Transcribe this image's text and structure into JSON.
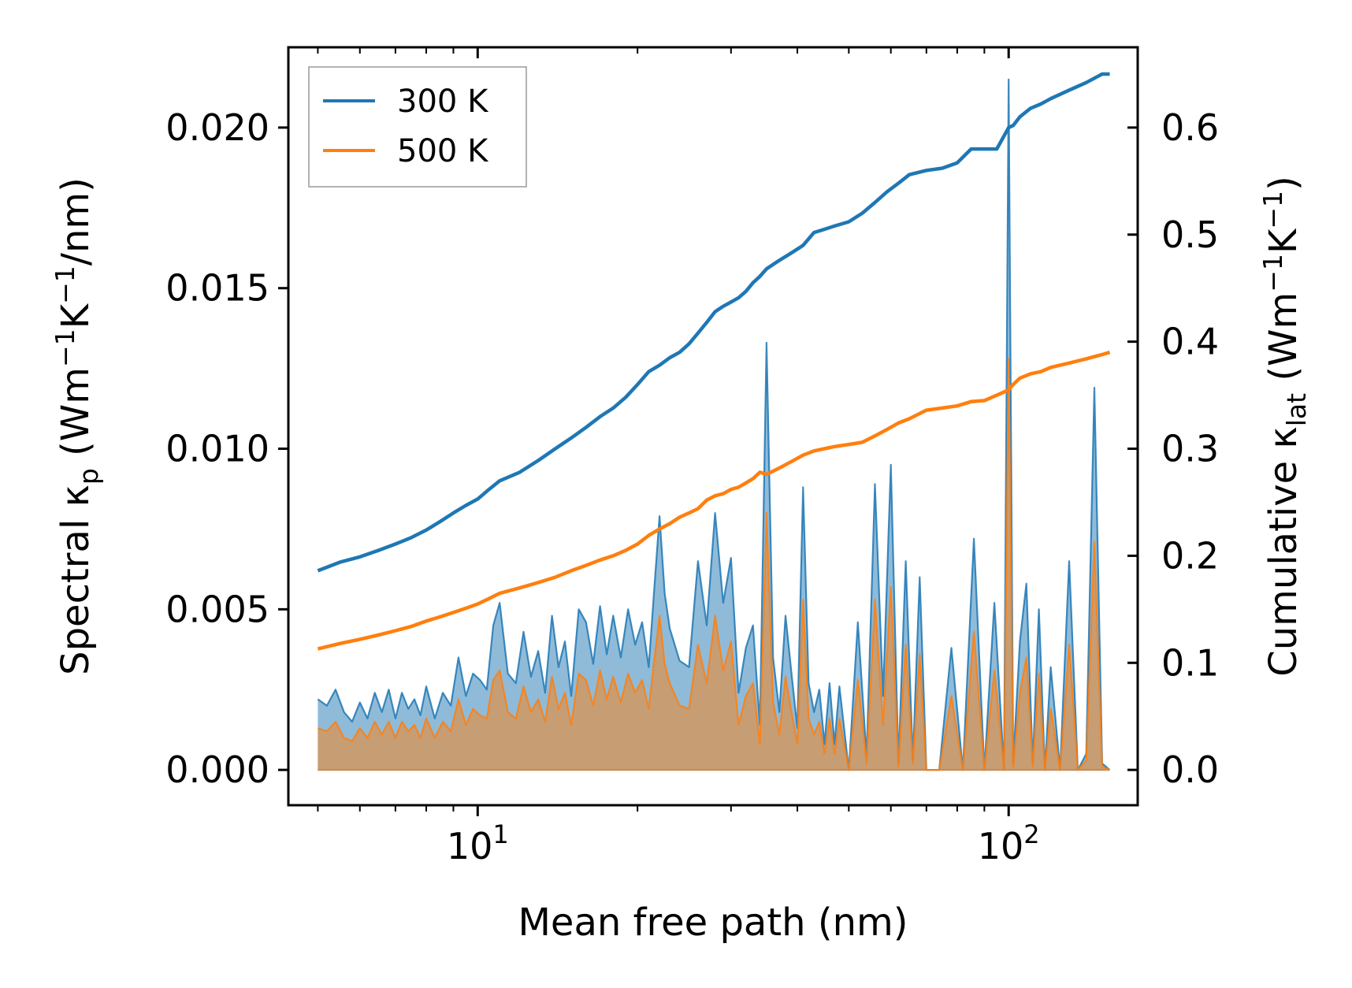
{
  "chart_data": {
    "type": "line",
    "xscale": "log",
    "xlabel": "Mean free path (nm)",
    "xlim": [
      4.4,
      175
    ],
    "x_major_ticks": [
      {
        "value": 10,
        "base": "10",
        "exp": "1"
      },
      {
        "value": 100,
        "base": "10",
        "exp": "2"
      }
    ],
    "y_left": {
      "label": {
        "prefix": "Spectral κ",
        "sub": "p",
        "units_prefix": " (Wm",
        "exp1": "−1",
        "units_mid": "K",
        "exp2": "−1",
        "units_suffix": "/nm)"
      },
      "ylim": [
        -0.0011,
        0.0225
      ],
      "ticks": [
        {
          "value": 0.0,
          "label": "0.000"
        },
        {
          "value": 0.005,
          "label": "0.005"
        },
        {
          "value": 0.01,
          "label": "0.010"
        },
        {
          "value": 0.015,
          "label": "0.015"
        },
        {
          "value": 0.02,
          "label": "0.020"
        }
      ]
    },
    "y_right": {
      "label": {
        "prefix": "Cumulative κ",
        "sub": "lat",
        "units_prefix": " (Wm",
        "exp1": "−1",
        "units_mid": "K",
        "exp2": "−1",
        "units_suffix": ")"
      },
      "ylim": [
        -0.033,
        0.675
      ],
      "ticks": [
        {
          "value": 0.0,
          "label": "0.0"
        },
        {
          "value": 0.1,
          "label": "0.1"
        },
        {
          "value": 0.2,
          "label": "0.2"
        },
        {
          "value": 0.3,
          "label": "0.3"
        },
        {
          "value": 0.4,
          "label": "0.4"
        },
        {
          "value": 0.5,
          "label": "0.5"
        },
        {
          "value": 0.6,
          "label": "0.6"
        }
      ]
    },
    "series": [
      {
        "name": "300 K",
        "color": "#1f77b4",
        "fill_color": "#1f77b4",
        "cumulative": {
          "x": [
            5,
            5.5,
            6,
            6.5,
            7,
            7.5,
            8,
            8.5,
            9,
            9.5,
            10,
            10.5,
            11,
            12,
            13,
            14,
            15,
            16,
            17,
            18,
            19,
            20,
            21,
            22,
            23,
            24,
            25,
            26,
            27,
            28,
            29,
            30,
            31,
            32,
            33,
            34,
            35,
            37,
            39,
            41,
            43,
            45,
            47,
            50,
            53,
            56,
            59,
            62,
            65,
            70,
            75,
            80,
            85,
            90,
            95,
            100,
            102,
            105,
            110,
            115,
            120,
            130,
            140,
            150,
            155
          ],
          "y": [
            0.186,
            0.194,
            0.199,
            0.205,
            0.211,
            0.217,
            0.224,
            0.232,
            0.24,
            0.247,
            0.253,
            0.262,
            0.27,
            0.278,
            0.289,
            0.3,
            0.31,
            0.32,
            0.33,
            0.338,
            0.348,
            0.36,
            0.372,
            0.378,
            0.385,
            0.39,
            0.398,
            0.408,
            0.418,
            0.428,
            0.433,
            0.437,
            0.441,
            0.447,
            0.455,
            0.461,
            0.468,
            0.476,
            0.483,
            0.49,
            0.502,
            0.505,
            0.508,
            0.512,
            0.52,
            0.53,
            0.54,
            0.548,
            0.556,
            0.56,
            0.562,
            0.567,
            0.58,
            0.58,
            0.58,
            0.6,
            0.602,
            0.61,
            0.618,
            0.622,
            0.627,
            0.635,
            0.642,
            0.65,
            0.65
          ]
        },
        "spectral": {
          "x": [
            5,
            5.2,
            5.4,
            5.6,
            5.8,
            6.0,
            6.2,
            6.4,
            6.6,
            6.8,
            7.0,
            7.2,
            7.4,
            7.6,
            7.8,
            8.0,
            8.3,
            8.6,
            8.9,
            9.2,
            9.5,
            9.8,
            10.1,
            10.4,
            10.7,
            11.0,
            11.4,
            11.8,
            12.2,
            12.6,
            13.0,
            13.4,
            13.8,
            14.2,
            14.6,
            15.0,
            15.5,
            16.0,
            16.5,
            17.0,
            17.5,
            18.0,
            18.6,
            19.2,
            19.8,
            20.4,
            21.0,
            21.5,
            22.0,
            22.5,
            23.0,
            24.0,
            25.0,
            26.0,
            27.0,
            28.0,
            29.0,
            30.0,
            31.0,
            32.0,
            33.0,
            34.0,
            35.0,
            36.0,
            37.0,
            38.0,
            39.0,
            40.0,
            41.0,
            42.0,
            43.0,
            44.0,
            45.0,
            46.0,
            47.0,
            48.0,
            50.0,
            52.0,
            54.0,
            56.0,
            58.0,
            60.0,
            62.0,
            64.0,
            66.0,
            68.0,
            70.0,
            74.0,
            78.0,
            82.0,
            86.0,
            90.0,
            94.0,
            98.0,
            100.0,
            102.0,
            105.0,
            108.0,
            111.0,
            114.0,
            117.0,
            120.0,
            125.0,
            130.0,
            135.0,
            140.0,
            145.0,
            150.0,
            155.0
          ],
          "y": [
            0.0022,
            0.002,
            0.0025,
            0.0018,
            0.0015,
            0.0021,
            0.0016,
            0.0024,
            0.0018,
            0.0025,
            0.0016,
            0.0024,
            0.0019,
            0.0022,
            0.0017,
            0.0026,
            0.0016,
            0.0024,
            0.002,
            0.0035,
            0.0023,
            0.003,
            0.0028,
            0.0025,
            0.0045,
            0.0052,
            0.003,
            0.0027,
            0.0043,
            0.0029,
            0.0037,
            0.0024,
            0.0048,
            0.0032,
            0.004,
            0.0023,
            0.005,
            0.0046,
            0.0033,
            0.0051,
            0.0036,
            0.0048,
            0.0035,
            0.005,
            0.0039,
            0.0046,
            0.0032,
            0.0056,
            0.0079,
            0.0055,
            0.0044,
            0.0034,
            0.0032,
            0.0065,
            0.0045,
            0.008,
            0.0052,
            0.0066,
            0.0024,
            0.0038,
            0.0045,
            0.0014,
            0.0133,
            0.0035,
            0.0018,
            0.0048,
            0.003,
            0.0013,
            0.0088,
            0.0027,
            0.0018,
            0.0025,
            0.0008,
            0.0027,
            0.0008,
            0.0026,
            0.0,
            0.0046,
            0.0004,
            0.0089,
            0.0023,
            0.0095,
            0.0002,
            0.0065,
            0.0003,
            0.006,
            0.0,
            0.0,
            0.0038,
            0.0,
            0.0072,
            0.0,
            0.0052,
            0.0,
            0.0215,
            0.0002,
            0.004,
            0.0058,
            0.0002,
            0.005,
            0.0,
            0.0032,
            0.0,
            0.0065,
            0.0,
            0.0005,
            0.0119,
            0.0002,
            0.0
          ]
        }
      },
      {
        "name": "500 K",
        "color": "#ff7f0e",
        "fill_color": "#ff7f0e",
        "cumulative": {
          "x": [
            5,
            5.5,
            6,
            6.5,
            7,
            7.5,
            8,
            8.5,
            9,
            9.5,
            10,
            10.5,
            11,
            12,
            13,
            14,
            15,
            16,
            17,
            18,
            19,
            20,
            21,
            22,
            23,
            24,
            25,
            26,
            27,
            28,
            29,
            30,
            31,
            32,
            33,
            34,
            35,
            37,
            39,
            41,
            43,
            45,
            47,
            50,
            53,
            56,
            59,
            62,
            65,
            70,
            75,
            80,
            85,
            90,
            95,
            100,
            102,
            105,
            110,
            115,
            120,
            130,
            140,
            150,
            155
          ],
          "y": [
            0.113,
            0.118,
            0.122,
            0.126,
            0.13,
            0.134,
            0.139,
            0.143,
            0.147,
            0.151,
            0.155,
            0.16,
            0.165,
            0.17,
            0.175,
            0.18,
            0.186,
            0.191,
            0.196,
            0.2,
            0.205,
            0.211,
            0.219,
            0.225,
            0.23,
            0.236,
            0.24,
            0.244,
            0.252,
            0.256,
            0.258,
            0.262,
            0.264,
            0.268,
            0.272,
            0.278,
            0.276,
            0.282,
            0.288,
            0.294,
            0.298,
            0.3,
            0.302,
            0.304,
            0.306,
            0.312,
            0.318,
            0.324,
            0.328,
            0.336,
            0.338,
            0.34,
            0.344,
            0.345,
            0.35,
            0.355,
            0.36,
            0.366,
            0.37,
            0.372,
            0.376,
            0.38,
            0.384,
            0.388,
            0.39
          ]
        },
        "spectral": {
          "x": [
            5,
            5.2,
            5.4,
            5.6,
            5.8,
            6.0,
            6.2,
            6.4,
            6.6,
            6.8,
            7.0,
            7.2,
            7.4,
            7.6,
            7.8,
            8.0,
            8.3,
            8.6,
            8.9,
            9.2,
            9.5,
            9.8,
            10.1,
            10.4,
            10.7,
            11.0,
            11.4,
            11.8,
            12.2,
            12.6,
            13.0,
            13.4,
            13.8,
            14.2,
            14.6,
            15.0,
            15.5,
            16.0,
            16.5,
            17.0,
            17.5,
            18.0,
            18.6,
            19.2,
            19.8,
            20.4,
            21.0,
            21.5,
            22.0,
            22.5,
            23.0,
            24.0,
            25.0,
            26.0,
            27.0,
            28.0,
            29.0,
            30.0,
            31.0,
            32.0,
            33.0,
            34.0,
            35.0,
            36.0,
            37.0,
            38.0,
            39.0,
            40.0,
            41.0,
            42.0,
            43.0,
            44.0,
            45.0,
            46.0,
            47.0,
            48.0,
            50.0,
            52.0,
            54.0,
            56.0,
            58.0,
            60.0,
            62.0,
            64.0,
            66.0,
            68.0,
            70.0,
            74.0,
            78.0,
            82.0,
            86.0,
            90.0,
            94.0,
            98.0,
            100.0,
            102.0,
            105.0,
            108.0,
            111.0,
            114.0,
            117.0,
            120.0,
            125.0,
            130.0,
            135.0,
            140.0,
            145.0,
            150.0,
            155.0
          ],
          "y": [
            0.0013,
            0.0012,
            0.0015,
            0.001,
            0.0009,
            0.0013,
            0.001,
            0.0015,
            0.0011,
            0.0015,
            0.001,
            0.0015,
            0.0012,
            0.0014,
            0.001,
            0.0016,
            0.001,
            0.0015,
            0.0012,
            0.0022,
            0.0014,
            0.0019,
            0.0017,
            0.0016,
            0.0028,
            0.0031,
            0.0018,
            0.0016,
            0.0026,
            0.0018,
            0.0022,
            0.0015,
            0.0029,
            0.0019,
            0.0024,
            0.0014,
            0.003,
            0.0028,
            0.002,
            0.0031,
            0.0022,
            0.0029,
            0.0021,
            0.003,
            0.0024,
            0.0028,
            0.0019,
            0.0034,
            0.0048,
            0.0033,
            0.0027,
            0.002,
            0.0019,
            0.0039,
            0.0027,
            0.0048,
            0.0031,
            0.004,
            0.0014,
            0.0023,
            0.0027,
            0.0008,
            0.008,
            0.0021,
            0.0011,
            0.0029,
            0.0018,
            0.0008,
            0.0053,
            0.0016,
            0.0011,
            0.0015,
            0.0005,
            0.0016,
            0.0005,
            0.0016,
            0.0,
            0.0028,
            0.0002,
            0.0053,
            0.0014,
            0.0057,
            0.0001,
            0.0039,
            0.0002,
            0.0036,
            0.0,
            0.0,
            0.0023,
            0.0,
            0.0043,
            0.0,
            0.0031,
            0.0,
            0.0128,
            0.0001,
            0.0024,
            0.0035,
            0.0001,
            0.003,
            0.0,
            0.0019,
            0.0,
            0.0039,
            0.0,
            0.0003,
            0.0071,
            0.0001,
            0.0
          ]
        }
      }
    ],
    "legend": {
      "position": "top-left",
      "entries": [
        "300 K",
        "500 K"
      ]
    }
  }
}
